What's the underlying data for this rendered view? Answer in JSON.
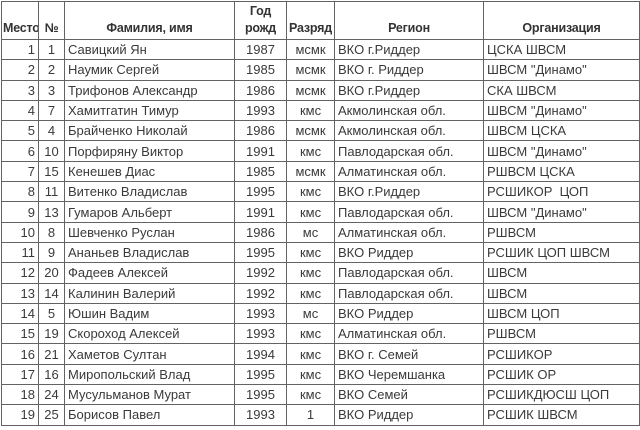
{
  "colors": {
    "background": "#ffffff",
    "grid_border": "#636363",
    "text": "#3a3a3a"
  },
  "table": {
    "columns": [
      {
        "key": "place",
        "label": "Место"
      },
      {
        "key": "number",
        "label": "№"
      },
      {
        "key": "name",
        "label": "Фамилия, имя"
      },
      {
        "key": "birth_year",
        "label": "Год рожд"
      },
      {
        "key": "rank",
        "label": "Разряд"
      },
      {
        "key": "region",
        "label": "Регион"
      },
      {
        "key": "organization",
        "label": "Организация"
      }
    ],
    "rows": [
      [
        "1",
        "1",
        "Савицкий Ян",
        "1987",
        "мсмк",
        "ВКО г.Риддер",
        "ЦСКА ШВСМ"
      ],
      [
        "2",
        "2",
        "Наумик Сергей",
        "1985",
        "мсмк",
        "ВКО г. Риддер",
        "ШВСМ \"Динамо\""
      ],
      [
        "3",
        "3",
        "Трифонов Александр",
        "1986",
        "мсмк",
        "ВКО г.Риддер",
        "СКА ШВСМ"
      ],
      [
        "4",
        "7",
        "Хамитгатин Тимур",
        "1993",
        "кмс",
        "Акмолинская обл.",
        "ШВСМ \"Динамо\""
      ],
      [
        "5",
        "4",
        "Брайченко Николай",
        "1986",
        "мсмк",
        "Акмолинская обл.",
        "ШВСМ ЦСКА"
      ],
      [
        "6",
        "10",
        "Порфиряну Виктор",
        "1991",
        "кмс",
        "Павлодарская обл.",
        "ШВСМ \"Динамо\""
      ],
      [
        "7",
        "15",
        "Кенешев Диас",
        "1985",
        "мсмк",
        "Алматинская обл.",
        "РШВСМ ЦСКА"
      ],
      [
        "8",
        "11",
        "Витенко Владислав",
        "1995",
        "кмс",
        "ВКО г.Риддер",
        "РСШИКОР  ЦОП"
      ],
      [
        "9",
        "13",
        "Гумаров Альберт",
        "1991",
        "кмс",
        "Павлодарская обл.",
        "ШВСМ \"Динамо\""
      ],
      [
        "10",
        "8",
        "Шевченко Руслан",
        "1986",
        "мс",
        "Алматинская обл.",
        "РШВСМ"
      ],
      [
        "11",
        "9",
        "Ананьев Владислав",
        "1995",
        "кмс",
        "ВКО Риддер",
        "РСШИК ЦОП ШВСМ"
      ],
      [
        "12",
        "20",
        "Фадеев Алексей",
        "1992",
        "кмс",
        "Павлодарская обл.",
        "ШВСМ"
      ],
      [
        "13",
        "14",
        "Калинин Валерий",
        "1992",
        "кмс",
        "Павлодарская обл.",
        "ШВСМ"
      ],
      [
        "14",
        "5",
        "Юшин Вадим",
        "1993",
        "мс",
        "ВКО Риддер",
        "ШВСМ ЦОП"
      ],
      [
        "15",
        "19",
        "Скороход Алексей",
        "1993",
        "кмс",
        "Алматинская обл.",
        "РШВСМ"
      ],
      [
        "16",
        "21",
        "Хаметов Султан",
        "1994",
        "кмс",
        "ВКО г. Семей",
        "РСШИКОР"
      ],
      [
        "17",
        "16",
        "Миропольский Влад",
        "1995",
        "кмс",
        "ВКО Черемшанка",
        "РСШИК ОР"
      ],
      [
        "18",
        "24",
        "Мусульманов Мурат",
        "1995",
        "кмс",
        "ВКО Семей",
        "РСШИКДЮСШ ЦОП"
      ],
      [
        "19",
        "25",
        "Борисов Павел",
        "1993",
        "1",
        "ВКО Риддер",
        "РСШИК ШВСМ"
      ]
    ]
  }
}
